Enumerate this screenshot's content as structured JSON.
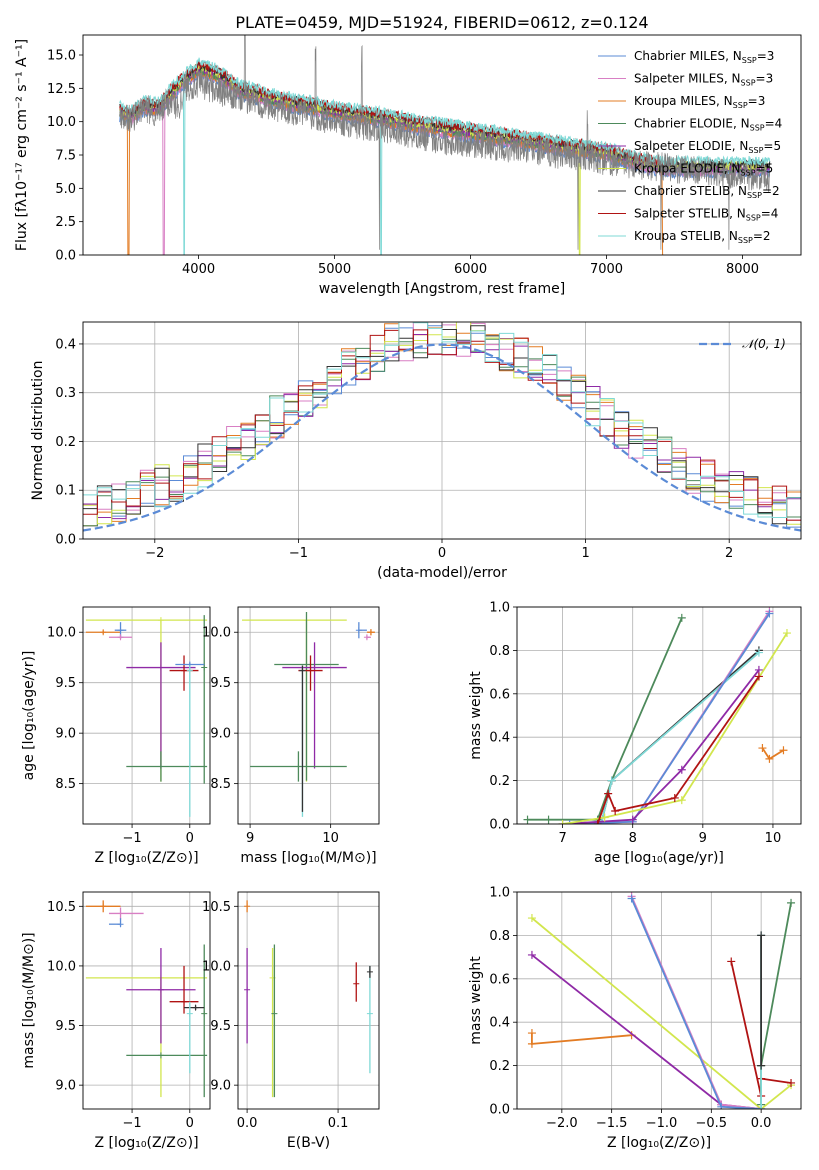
{
  "colors": {
    "chabrier_miles": "#5b8bd6",
    "salpeter_miles": "#d87fc4",
    "kroupa_miles": "#e37c24",
    "chabrier_elodie": "#4d8a5b",
    "salpeter_elodie": "#8f2aa6",
    "kroupa_elodie": "#d2e64e",
    "chabrier_stelib": "#333333",
    "salpeter_stelib": "#b01313",
    "kroupa_stelib": "#7fd9d6",
    "observed": "#808080",
    "gaussian": "#5b8bd6",
    "grid": "#b0b0b0"
  },
  "chart_data": [
    {
      "id": "spectrum",
      "type": "line",
      "title": "PLATE=0459, MJD=51924, FIBERID=0612, z=0.124",
      "xlabel": "wavelength [Angstrom, rest frame]",
      "ylabel": "Flux [fλ10⁻¹⁷ erg cm⁻² s⁻¹ A⁻¹]",
      "xlim": [
        3150,
        8430
      ],
      "ylim": [
        0,
        16.5
      ],
      "xticks": [
        4000,
        5000,
        6000,
        7000,
        8000
      ],
      "yticks": [
        0.0,
        2.5,
        5.0,
        7.5,
        10.0,
        12.5,
        15.0
      ],
      "legend_position": "top-right",
      "legend": [
        {
          "label": "Chabrier MILES, N",
          "sub": "SSP",
          "suffix": "=3",
          "color_key": "chabrier_miles"
        },
        {
          "label": "Salpeter MILES, N",
          "sub": "SSP",
          "suffix": "=3",
          "color_key": "salpeter_miles"
        },
        {
          "label": "Kroupa MILES, N",
          "sub": "SSP",
          "suffix": "=3",
          "color_key": "kroupa_miles"
        },
        {
          "label": "Chabrier ELODIE, N",
          "sub": "SSP",
          "suffix": "=4",
          "color_key": "chabrier_elodie"
        },
        {
          "label": "Salpeter ELODIE, N",
          "sub": "SSP",
          "suffix": "=5",
          "color_key": "salpeter_elodie"
        },
        {
          "label": "Kroupa ELODIE, N",
          "sub": "SSP",
          "suffix": "=5",
          "color_key": "kroupa_elodie"
        },
        {
          "label": "Chabrier STELIB, N",
          "sub": "SSP",
          "suffix": "=2",
          "color_key": "chabrier_stelib"
        },
        {
          "label": "Salpeter STELIB, N",
          "sub": "SSP",
          "suffix": "=4",
          "color_key": "salpeter_stelib"
        },
        {
          "label": "Kroupa STELIB, N",
          "sub": "SSP",
          "suffix": "=2",
          "color_key": "kroupa_stelib"
        }
      ],
      "observed": {
        "x": [
          3420,
          3500,
          3600,
          3700,
          3800,
          3850,
          3900,
          4000,
          4100,
          4200,
          4300,
          4400,
          4500,
          4600,
          4700,
          4800,
          4900,
          5000,
          5100,
          5200,
          5300,
          5400,
          5500,
          5600,
          5700,
          5800,
          5900,
          6000,
          6100,
          6200,
          6300,
          6400,
          6500,
          6600,
          6700,
          6800,
          6900,
          7000,
          7200,
          7400,
          7600,
          7800,
          8000,
          8200
        ],
        "y": [
          10.6,
          10.2,
          11.0,
          10.6,
          11.6,
          11.0,
          12.6,
          12.8,
          12.5,
          12.0,
          11.8,
          11.6,
          11.2,
          11.0,
          10.8,
          10.6,
          10.3,
          10.1,
          9.9,
          9.7,
          9.6,
          9.4,
          9.2,
          9.0,
          8.8,
          8.6,
          8.5,
          8.4,
          8.3,
          8.1,
          8.0,
          7.9,
          7.8,
          7.6,
          7.5,
          7.4,
          7.2,
          7.0,
          6.8,
          6.6,
          6.4,
          6.2,
          6.0,
          5.8
        ]
      },
      "model": {
        "x": [
          3420,
          3500,
          3600,
          3700,
          3800,
          3900,
          4000,
          4100,
          4200,
          4300,
          4400,
          4500,
          4600,
          4700,
          4800,
          4900,
          5000,
          5200,
          5400,
          5600,
          5800,
          6000,
          6200,
          6400,
          6600,
          6800,
          7000,
          7200,
          7400
        ],
        "y": [
          10.8,
          10.4,
          11.2,
          11.0,
          12.2,
          13.2,
          14.0,
          13.7,
          13.2,
          12.4,
          12.2,
          11.8,
          11.6,
          11.4,
          11.2,
          11.0,
          10.8,
          10.5,
          10.2,
          9.8,
          9.5,
          9.2,
          8.9,
          8.6,
          8.3,
          8.0,
          7.7,
          7.1,
          6.6
        ]
      }
    },
    {
      "id": "residuals",
      "type": "line",
      "xlabel": "(data-model)/error",
      "ylabel": "Normed distribution",
      "xlim": [
        -2.5,
        2.5
      ],
      "ylim": [
        0,
        0.445
      ],
      "xticks": [
        -2,
        -1,
        0,
        1,
        2
      ],
      "yticks": [
        0.0,
        0.1,
        0.2,
        0.3,
        0.4
      ],
      "grid": true,
      "legend_position": "top-right",
      "gaussian_label": "𝒩(0, 1)",
      "hist_edges_start": -2.5,
      "hist_bin_width": 0.1
    },
    {
      "id": "age_vs_Z",
      "type": "scatter",
      "xlabel": "Z [log₁₀(Z/Z⊙)]",
      "ylabel": "age  [log₁₀(age/yr)]",
      "xlim": [
        -1.85,
        0.35
      ],
      "ylim": [
        8.1,
        10.25
      ],
      "xticks": [
        -1,
        0
      ],
      "yticks": [
        8.5,
        9.0,
        9.5,
        10.0
      ],
      "grid": true
    },
    {
      "id": "age_vs_mass",
      "type": "scatter",
      "xlabel": "mass [log₁₀(M/M⊙)]",
      "ylabel": "",
      "xlim": [
        8.85,
        10.6
      ],
      "ylim": [
        8.1,
        10.25
      ],
      "xticks": [
        9,
        10
      ],
      "yticks": [
        8.5,
        9.0,
        9.5,
        10.0
      ],
      "grid": true
    },
    {
      "id": "weight_vs_age",
      "type": "line",
      "xlabel": "age  [log₁₀(age/yr)]",
      "ylabel": "mass weight",
      "xlim": [
        6.35,
        10.4
      ],
      "ylim": [
        0,
        1.0
      ],
      "xticks": [
        7,
        8,
        9,
        10
      ],
      "yticks": [
        0.0,
        0.2,
        0.4,
        0.6,
        0.8,
        1.0
      ],
      "grid": true,
      "series": [
        {
          "color_key": "chabrier_elodie",
          "x": [
            6.5,
            6.8,
            7.5,
            7.7,
            8.7
          ],
          "y": [
            0.02,
            0.02,
            0.02,
            0.2,
            0.95
          ]
        },
        {
          "color_key": "chabrier_stelib",
          "x": [
            7.55,
            7.7,
            9.8
          ],
          "y": [
            0.0,
            0.2,
            0.8
          ]
        },
        {
          "color_key": "kroupa_stelib",
          "x": [
            7.55,
            7.7,
            9.8
          ],
          "y": [
            0.0,
            0.2,
            0.79
          ]
        },
        {
          "color_key": "salpeter_miles",
          "x": [
            7.1,
            8.0,
            9.95
          ],
          "y": [
            0.0,
            0.01,
            0.98
          ]
        },
        {
          "color_key": "chabrier_miles",
          "x": [
            7.1,
            8.0,
            9.95
          ],
          "y": [
            0.0,
            0.01,
            0.97
          ]
        },
        {
          "color_key": "salpeter_elodie",
          "x": [
            7.0,
            8.0,
            8.7,
            9.8
          ],
          "y": [
            0.0,
            0.02,
            0.25,
            0.71
          ]
        },
        {
          "color_key": "kroupa_elodie",
          "x": [
            7.0,
            7.6,
            8.7,
            10.2
          ],
          "y": [
            0.0,
            0.03,
            0.11,
            0.88
          ]
        },
        {
          "color_key": "salpeter_stelib",
          "x": [
            7.5,
            7.65,
            7.75,
            8.6,
            9.8
          ],
          "y": [
            0.0,
            0.14,
            0.06,
            0.12,
            0.68
          ]
        },
        {
          "color_key": "kroupa_miles",
          "x": [
            9.85,
            9.95,
            10.15
          ],
          "y": [
            0.35,
            0.3,
            0.34
          ]
        }
      ]
    },
    {
      "id": "mass_vs_Z",
      "type": "scatter",
      "xlabel": "Z [log₁₀(Z/Z⊙)]",
      "ylabel": "mass [log₁₀(M/M⊙)]",
      "xlim": [
        -1.85,
        0.35
      ],
      "ylim": [
        8.8,
        10.62
      ],
      "xticks": [
        -1,
        0
      ],
      "yticks": [
        9.0,
        9.5,
        10.0,
        10.5
      ],
      "grid": true
    },
    {
      "id": "mass_vs_ebv",
      "type": "scatter",
      "xlabel": "E(B-V)",
      "ylabel": "",
      "xlim": [
        -0.01,
        0.145
      ],
      "ylim": [
        8.8,
        10.62
      ],
      "xticks": [
        0.0,
        0.1
      ],
      "yticks": [
        9.0,
        9.5,
        10.0,
        10.5
      ],
      "grid": true
    },
    {
      "id": "weight_vs_Z",
      "type": "line",
      "xlabel": "Z [log₁₀(Z/Z⊙)]",
      "ylabel": "mass weight",
      "xlim": [
        -2.45,
        0.4
      ],
      "ylim": [
        0,
        1.0
      ],
      "xticks": [
        -2.0,
        -1.5,
        -1.0,
        -0.5,
        0.0
      ],
      "yticks": [
        0.0,
        0.2,
        0.4,
        0.6,
        0.8,
        1.0
      ],
      "grid": true,
      "series": [
        {
          "color_key": "kroupa_miles",
          "x": [
            -2.3,
            -2.3,
            -1.3
          ],
          "y": [
            0.35,
            0.3,
            0.34
          ]
        },
        {
          "color_key": "kroupa_elodie",
          "x": [
            -2.3,
            0.0,
            0.3
          ],
          "y": [
            0.88,
            0.0,
            0.11
          ]
        },
        {
          "color_key": "salpeter_elodie",
          "x": [
            -2.3,
            -0.4,
            0.0
          ],
          "y": [
            0.71,
            0.02,
            0.0
          ]
        },
        {
          "color_key": "salpeter_miles",
          "x": [
            -1.3,
            -0.4,
            0.0
          ],
          "y": [
            0.98,
            0.02,
            0.0
          ]
        },
        {
          "color_key": "chabrier_miles",
          "x": [
            -1.3,
            -0.4,
            0.0
          ],
          "y": [
            0.97,
            0.01,
            0.0
          ]
        },
        {
          "color_key": "salpeter_stelib",
          "x": [
            -0.3,
            0.0,
            0.0,
            0.3
          ],
          "y": [
            0.68,
            0.06,
            0.14,
            0.12
          ]
        },
        {
          "color_key": "chabrier_elodie",
          "x": [
            0.0,
            0.0,
            0.3
          ],
          "y": [
            0.02,
            0.2,
            0.95
          ]
        },
        {
          "color_key": "kroupa_stelib",
          "x": [
            0.0,
            0.0
          ],
          "y": [
            0.0,
            0.8
          ]
        },
        {
          "color_key": "chabrier_stelib",
          "x": [
            0.0,
            0.0
          ],
          "y": [
            0.2,
            0.8
          ]
        }
      ]
    }
  ],
  "errorbars": {
    "age_vs_Z": [
      {
        "c": "kroupa_miles",
        "x": -1.5,
        "y": 10.0,
        "xe": [
          0.3,
          0.3
        ],
        "ye": [
          0.02,
          0.02
        ]
      },
      {
        "c": "chabrier_miles",
        "x": -1.2,
        "y": 10.02,
        "xe": [
          0.1,
          0.1
        ],
        "ye": [
          0.08,
          0.08
        ]
      },
      {
        "c": "salpeter_miles",
        "x": -1.2,
        "y": 9.95,
        "xe": [
          0.2,
          0.2
        ],
        "ye": [
          0.02,
          0.02
        ]
      },
      {
        "c": "kroupa_elodie",
        "x": -0.5,
        "y": 10.12,
        "xe": [
          1.3,
          0.8
        ],
        "ye": [
          1.6,
          0.0
        ]
      },
      {
        "c": "salpeter_elodie",
        "x": -0.5,
        "y": 9.65,
        "xe": [
          0.6,
          0.6
        ],
        "ye": [
          1.0,
          0.25
        ]
      },
      {
        "c": "chabrier_elodie",
        "x": -0.5,
        "y": 8.67,
        "xe": [
          0.6,
          0.8
        ],
        "ye": [
          0.15,
          0.15
        ]
      },
      {
        "c": "chabrier_elodie",
        "x": 0.25,
        "y": 9.65,
        "xe": [
          0.0,
          0.0
        ],
        "ye": [
          1.15,
          0.52
        ]
      },
      {
        "c": "salpeter_stelib",
        "x": -0.1,
        "y": 9.62,
        "xe": [
          0.25,
          0.25
        ],
        "ye": [
          0.2,
          0.15
        ]
      },
      {
        "c": "chabrier_miles",
        "x": 0.0,
        "y": 9.68,
        "xe": [
          0.25,
          0.25
        ],
        "ye": [
          0.02,
          0.02
        ]
      },
      {
        "c": "kroupa_stelib",
        "x": 0.0,
        "y": 9.62,
        "xe": [
          0.0,
          0.0
        ],
        "ye": [
          1.45,
          0.05
        ]
      }
    ],
    "age_vs_mass": [
      {
        "c": "kroupa_elodie",
        "x": 9.7,
        "y": 10.12,
        "xe": [
          0.8,
          0.5
        ],
        "ye": [
          1.6,
          0.0
        ]
      },
      {
        "c": "chabrier_miles",
        "x": 10.35,
        "y": 10.02,
        "xe": [
          0.0,
          0.1
        ],
        "ye": [
          0.08,
          0.08
        ]
      },
      {
        "c": "salpeter_miles",
        "x": 10.45,
        "y": 9.95,
        "xe": [
          0.0,
          0.05
        ],
        "ye": [
          0.02,
          0.02
        ]
      },
      {
        "c": "kroupa_miles",
        "x": 10.5,
        "y": 10.0,
        "xe": [
          0.05,
          0.05
        ],
        "ye": [
          0.03,
          0.03
        ]
      },
      {
        "c": "chabrier_elodie",
        "x": 9.7,
        "y": 9.68,
        "xe": [
          0.4,
          0.4
        ],
        "ye": [
          1.15,
          0.52
        ]
      },
      {
        "c": "salpeter_elodie",
        "x": 9.8,
        "y": 9.65,
        "xe": [
          0.4,
          0.4
        ],
        "ye": [
          1.0,
          0.25
        ]
      },
      {
        "c": "chabrier_elodie",
        "x": 9.6,
        "y": 8.67,
        "xe": [
          0.6,
          0.6
        ],
        "ye": [
          0.15,
          0.15
        ]
      },
      {
        "c": "salpeter_stelib",
        "x": 9.75,
        "y": 9.62,
        "xe": [
          0.15,
          0.15
        ],
        "ye": [
          0.2,
          0.15
        ]
      },
      {
        "c": "kroupa_stelib",
        "x": 9.65,
        "y": 9.62,
        "xe": [
          0.0,
          0.0
        ],
        "ye": [
          1.45,
          0.05
        ]
      },
      {
        "c": "chabrier_stelib",
        "x": 9.65,
        "y": 9.62,
        "xe": [
          0.0,
          0.0
        ],
        "ye": [
          1.4,
          0.05
        ]
      }
    ],
    "mass_vs_Z": [
      {
        "c": "kroupa_miles",
        "x": -1.5,
        "y": 10.5,
        "xe": [
          0.3,
          0.3
        ],
        "ye": [
          0.05,
          0.05
        ]
      },
      {
        "c": "salpeter_miles",
        "x": -1.2,
        "y": 10.44,
        "xe": [
          0.2,
          0.4
        ],
        "ye": [
          0.05,
          0.05
        ]
      },
      {
        "c": "chabrier_miles",
        "x": -1.2,
        "y": 10.35,
        "xe": [
          0.2,
          0.0
        ],
        "ye": [
          0.02,
          0.05
        ]
      },
      {
        "c": "kroupa_elodie",
        "x": -0.5,
        "y": 9.9,
        "xe": [
          1.3,
          0.8
        ],
        "ye": [
          1.0,
          0.0
        ]
      },
      {
        "c": "salpeter_elodie",
        "x": -0.5,
        "y": 9.8,
        "xe": [
          0.6,
          0.6
        ],
        "ye": [
          0.45,
          0.35
        ]
      },
      {
        "c": "chabrier_elodie",
        "x": -0.5,
        "y": 9.25,
        "xe": [
          0.6,
          0.8
        ],
        "ye": [
          0.0,
          0.0
        ]
      },
      {
        "c": "chabrier_elodie",
        "x": 0.25,
        "y": 9.6,
        "xe": [
          0.0,
          0.0
        ],
        "ye": [
          0.7,
          0.58
        ]
      },
      {
        "c": "salpeter_stelib",
        "x": -0.1,
        "y": 9.7,
        "xe": [
          0.25,
          0.25
        ],
        "ye": [
          0.1,
          0.3
        ]
      },
      {
        "c": "chabrier_stelib",
        "x": 0.1,
        "y": 9.65,
        "xe": [
          0.2,
          0.15
        ],
        "ye": [
          0.02,
          0.02
        ]
      },
      {
        "c": "kroupa_stelib",
        "x": 0.0,
        "y": 9.6,
        "xe": [
          0.0,
          0.0
        ],
        "ye": [
          0.5,
          0.1
        ]
      }
    ],
    "mass_vs_ebv": [
      {
        "c": "kroupa_miles",
        "x": 0.0,
        "y": 10.5,
        "xe": [
          0.0,
          0.0
        ],
        "ye": [
          0.05,
          0.05
        ]
      },
      {
        "c": "salpeter_elodie",
        "x": 0.0,
        "y": 9.8,
        "xe": [
          0.0,
          0.0
        ],
        "ye": [
          0.45,
          0.35
        ]
      },
      {
        "c": "kroupa_elodie",
        "x": 0.028,
        "y": 9.9,
        "xe": [
          0.0,
          0.0
        ],
        "ye": [
          1.0,
          0.25
        ]
      },
      {
        "c": "chabrier_elodie",
        "x": 0.03,
        "y": 9.6,
        "xe": [
          0.0,
          0.0
        ],
        "ye": [
          0.7,
          0.58
        ]
      },
      {
        "c": "salpeter_stelib",
        "x": 0.12,
        "y": 9.85,
        "xe": [
          0.0,
          0.0
        ],
        "ye": [
          0.15,
          0.18
        ]
      },
      {
        "c": "kroupa_stelib",
        "x": 0.135,
        "y": 9.6,
        "xe": [
          0.0,
          0.0
        ],
        "ye": [
          0.5,
          0.4
        ]
      },
      {
        "c": "chabrier_stelib",
        "x": 0.135,
        "y": 9.95,
        "xe": [
          0.0,
          0.0
        ],
        "ye": [
          0.05,
          0.05
        ]
      }
    ]
  }
}
